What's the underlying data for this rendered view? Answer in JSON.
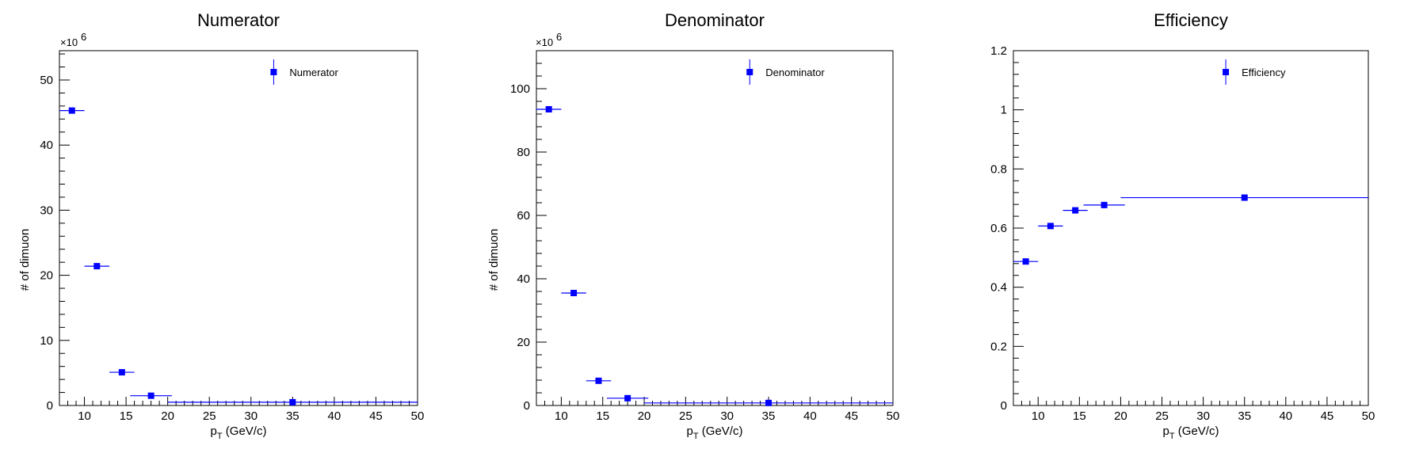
{
  "chart_data": [
    {
      "type": "scatter",
      "title": "Numerator",
      "xlabel": "p_T (GeV/c)",
      "xlabel_main": "p",
      "xlabel_sub": "T",
      "xlabel_rest": " (GeV/c)",
      "ylabel": "# of dimuon",
      "y_exponent_label": "×10",
      "y_exponent_power": "6",
      "xlim": [
        7,
        50
      ],
      "ylim": [
        0,
        54.5
      ],
      "x_ticks": [
        10,
        15,
        20,
        25,
        30,
        35,
        40,
        45,
        50
      ],
      "x_tick_labels": [
        "10",
        "15",
        "20",
        "25",
        "30",
        "35",
        "40",
        "45",
        "50"
      ],
      "y_ticks": [
        0,
        10,
        20,
        30,
        40,
        50
      ],
      "y_tick_labels": [
        "0",
        "10",
        "20",
        "30",
        "40",
        "50"
      ],
      "series": [
        {
          "name": "Numerator",
          "color": "#0000ff",
          "points": [
            {
              "x": 8.5,
              "xerr": 1.5,
              "y": 45.3
            },
            {
              "x": 11.5,
              "xerr": 1.5,
              "y": 21.4
            },
            {
              "x": 14.5,
              "xerr": 1.5,
              "y": 5.1
            },
            {
              "x": 18.0,
              "xerr": 2.5,
              "y": 1.5
            },
            {
              "x": 35.0,
              "xerr": 15.0,
              "y": 0.5
            }
          ]
        }
      ],
      "legend": "top-right",
      "grid": false
    },
    {
      "type": "scatter",
      "title": "Denominator",
      "xlabel": "p_T (GeV/c)",
      "xlabel_main": "p",
      "xlabel_sub": "T",
      "xlabel_rest": " (GeV/c)",
      "ylabel": "# of dimuon",
      "y_exponent_label": "×10",
      "y_exponent_power": "6",
      "xlim": [
        7,
        50
      ],
      "ylim": [
        0,
        112
      ],
      "x_ticks": [
        10,
        15,
        20,
        25,
        30,
        35,
        40,
        45,
        50
      ],
      "x_tick_labels": [
        "10",
        "15",
        "20",
        "25",
        "30",
        "35",
        "40",
        "45",
        "50"
      ],
      "y_ticks": [
        0,
        20,
        40,
        60,
        80,
        100
      ],
      "y_tick_labels": [
        "0",
        "20",
        "40",
        "60",
        "80",
        "100"
      ],
      "series": [
        {
          "name": "Denominator",
          "color": "#0000ff",
          "points": [
            {
              "x": 8.5,
              "xerr": 1.5,
              "y": 93.5
            },
            {
              "x": 11.5,
              "xerr": 1.5,
              "y": 35.5
            },
            {
              "x": 14.5,
              "xerr": 1.5,
              "y": 7.8
            },
            {
              "x": 18.0,
              "xerr": 2.5,
              "y": 2.3
            },
            {
              "x": 35.0,
              "xerr": 15.0,
              "y": 0.8
            }
          ]
        }
      ],
      "legend": "top-right",
      "grid": false
    },
    {
      "type": "scatter",
      "title": "Efficiency",
      "xlabel": "p_T (GeV/c)",
      "xlabel_main": "p",
      "xlabel_sub": "T",
      "xlabel_rest": " (GeV/c)",
      "ylabel": "",
      "y_exponent_label": "",
      "y_exponent_power": "",
      "xlim": [
        7,
        50
      ],
      "ylim": [
        0,
        1.2
      ],
      "x_ticks": [
        10,
        15,
        20,
        25,
        30,
        35,
        40,
        45,
        50
      ],
      "x_tick_labels": [
        "10",
        "15",
        "20",
        "25",
        "30",
        "35",
        "40",
        "45",
        "50"
      ],
      "y_ticks": [
        0,
        0.2,
        0.4,
        0.6,
        0.8,
        1,
        1.2
      ],
      "y_tick_labels": [
        "0",
        "0.2",
        "0.4",
        "0.6",
        "0.8",
        "1",
        "1.2"
      ],
      "series": [
        {
          "name": "Efficiency",
          "color": "#0000ff",
          "points": [
            {
              "x": 8.5,
              "xerr": 1.5,
              "y": 0.487
            },
            {
              "x": 11.5,
              "xerr": 1.5,
              "y": 0.607
            },
            {
              "x": 14.5,
              "xerr": 1.5,
              "y": 0.66
            },
            {
              "x": 18.0,
              "xerr": 2.5,
              "y": 0.678
            },
            {
              "x": 35.0,
              "xerr": 15.0,
              "y": 0.703
            }
          ]
        }
      ],
      "legend": "top-right",
      "grid": false
    }
  ]
}
